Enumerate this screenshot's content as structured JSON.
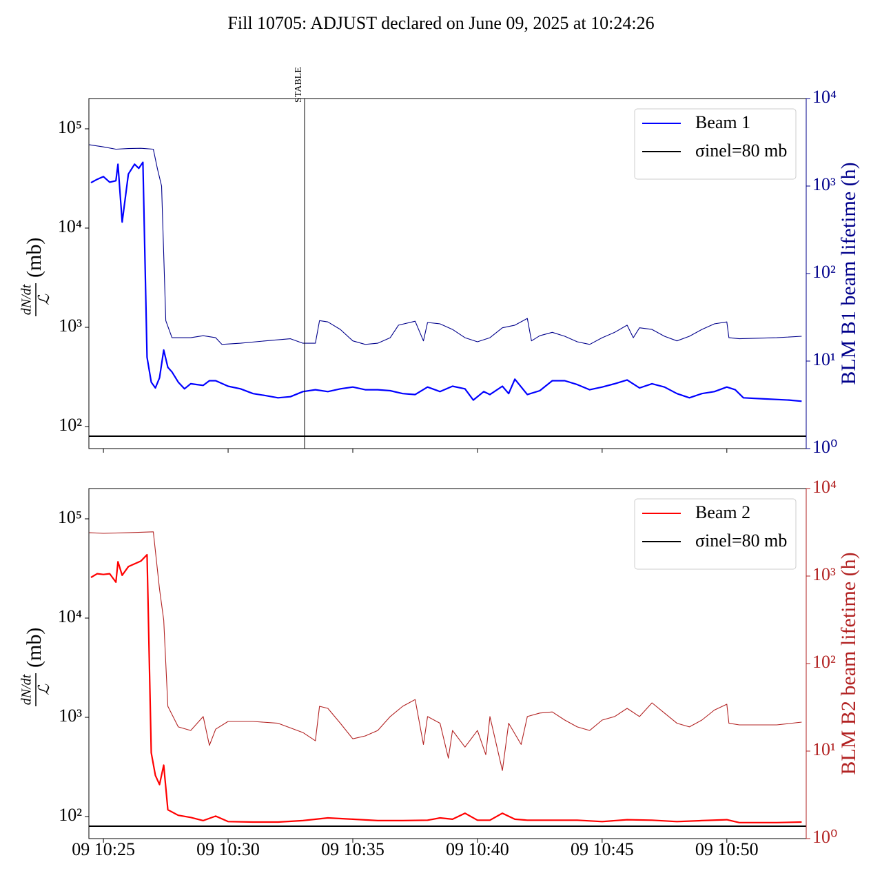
{
  "title": "Fill 10705: ADJUST declared on June 09, 2025 at 10:24:26",
  "chart_data": [
    {
      "type": "line",
      "yscale": "log",
      "y2scale": "log",
      "ylabel": {
        "numerator": "dN/dt",
        "denominator": "ℒ",
        "unit": "(mb)"
      },
      "y2label": "BLM B1 beam lifetime (h)",
      "y2color": "#00008b",
      "xlim": [
        "09 10:24:25",
        "09 10:53:11"
      ],
      "xticks": [
        "09 10:25",
        "09 10:30",
        "09 10:35",
        "09 10:40",
        "09 10:45",
        "09 10:50"
      ],
      "xticklabels": false,
      "ylim": [
        60,
        202000
      ],
      "yticks": [
        {
          "value": 100,
          "label": "10²"
        },
        {
          "value": 1000,
          "label": "10³"
        },
        {
          "value": 10000,
          "label": "10⁴"
        },
        {
          "value": 100000,
          "label": "10⁵"
        }
      ],
      "y2lim": [
        1,
        10000
      ],
      "y2ticks": [
        {
          "value": 1,
          "label": "10⁰"
        },
        {
          "value": 10,
          "label": "10¹"
        },
        {
          "value": 100,
          "label": "10²"
        },
        {
          "value": 1000,
          "label": "10³"
        },
        {
          "value": 10000,
          "label": "10⁴"
        }
      ],
      "annotation": {
        "text": "STABLE",
        "x": "09 10:33:04"
      },
      "series": [
        {
          "name": "Beam 1",
          "color": "#0000ff",
          "width": 2.2,
          "x": [
            "09 10:24:30",
            "09 10:24:45",
            "09 10:25:00",
            "09 10:25:15",
            "09 10:25:30",
            "09 10:25:35",
            "09 10:25:45",
            "09 10:26:00",
            "09 10:26:15",
            "09 10:26:25",
            "09 10:26:35",
            "09 10:26:45",
            "09 10:26:55",
            "09 10:27:05",
            "09 10:27:15",
            "09 10:27:25",
            "09 10:27:35",
            "09 10:27:45",
            "09 10:28:00",
            "09 10:28:15",
            "09 10:28:30",
            "09 10:28:45",
            "09 10:29:00",
            "09 10:29:15",
            "09 10:29:30",
            "09 10:30:00",
            "09 10:30:30",
            "09 10:31:00",
            "09 10:31:30",
            "09 10:32:00",
            "09 10:32:30",
            "09 10:33:00",
            "09 10:33:30",
            "09 10:34:00",
            "09 10:34:30",
            "09 10:35:00",
            "09 10:35:30",
            "09 10:36:00",
            "09 10:36:30",
            "09 10:37:00",
            "09 10:37:30",
            "09 10:38:00",
            "09 10:38:30",
            "09 10:39:00",
            "09 10:39:30",
            "09 10:39:50",
            "09 10:40:15",
            "09 10:40:30",
            "09 10:41:00",
            "09 10:41:15",
            "09 10:41:30",
            "09 10:42:00",
            "09 10:42:30",
            "09 10:43:00",
            "09 10:43:30",
            "09 10:44:00",
            "09 10:44:30",
            "09 10:45:00",
            "09 10:45:30",
            "09 10:46:00",
            "09 10:46:30",
            "09 10:47:00",
            "09 10:47:30",
            "09 10:48:00",
            "09 10:48:30",
            "09 10:49:00",
            "09 10:49:30",
            "09 10:50:00",
            "09 10:50:20",
            "09 10:50:40",
            "09 10:51:30",
            "09 10:52:30",
            "09 10:53:00"
          ],
          "values": [
            28700,
            31000,
            33000,
            29000,
            30000,
            44000,
            11500,
            35000,
            44000,
            40000,
            46000,
            500,
            280,
            245,
            310,
            590,
            395,
            355,
            280,
            240,
            270,
            265,
            260,
            290,
            290,
            255,
            240,
            215,
            205,
            195,
            200,
            225,
            235,
            225,
            240,
            250,
            235,
            235,
            230,
            215,
            210,
            250,
            225,
            255,
            240,
            185,
            225,
            210,
            255,
            215,
            300,
            210,
            230,
            290,
            290,
            265,
            235,
            250,
            270,
            295,
            245,
            270,
            250,
            215,
            195,
            215,
            225,
            250,
            235,
            195,
            190,
            185,
            180
          ]
        },
        {
          "color": "#00008b",
          "width": 1.1,
          "axis": "y2",
          "x": [
            "09 10:24:26",
            "09 10:25:00",
            "09 10:25:30",
            "09 10:26:00",
            "09 10:26:30",
            "09 10:27:00",
            "09 10:27:10",
            "09 10:27:20",
            "09 10:27:30",
            "09 10:27:45",
            "09 10:28:30",
            "09 10:29:00",
            "09 10:29:30",
            "09 10:29:45",
            "09 10:30:30",
            "09 10:31:30",
            "09 10:32:30",
            "09 10:33:00",
            "09 10:33:30",
            "09 10:33:40",
            "09 10:34:00",
            "09 10:34:30",
            "09 10:35:00",
            "09 10:35:30",
            "09 10:36:00",
            "09 10:36:30",
            "09 10:36:50",
            "09 10:37:30",
            "09 10:37:50",
            "09 10:38:00",
            "09 10:38:30",
            "09 10:39:00",
            "09 10:39:30",
            "09 10:40:00",
            "09 10:40:30",
            "09 10:41:00",
            "09 10:41:30",
            "09 10:42:00",
            "09 10:42:10",
            "09 10:42:30",
            "09 10:43:00",
            "09 10:43:30",
            "09 10:44:00",
            "09 10:44:30",
            "09 10:45:00",
            "09 10:45:30",
            "09 10:46:00",
            "09 10:46:15",
            "09 10:46:30",
            "09 10:47:00",
            "09 10:47:30",
            "09 10:48:00",
            "09 10:48:30",
            "09 10:49:00",
            "09 10:49:30",
            "09 10:50:00",
            "09 10:50:05",
            "09 10:50:30",
            "09 10:52:00",
            "09 10:53:00"
          ],
          "values": [
            2960,
            2800,
            2640,
            2680,
            2700,
            2640,
            1570,
            1000,
            29,
            18.5,
            18.5,
            19.5,
            18.5,
            15.5,
            16,
            17,
            18,
            16,
            16,
            29,
            28,
            23,
            17,
            15.5,
            16,
            18.5,
            25.7,
            28.5,
            17,
            27.6,
            26.6,
            23,
            18.5,
            16.6,
            18.5,
            24,
            25.7,
            30.7,
            17,
            19.5,
            21.3,
            19.2,
            16.6,
            15.5,
            18.5,
            21.3,
            25.7,
            18.5,
            24,
            23,
            19.2,
            17,
            19.2,
            23,
            26.6,
            28,
            18.5,
            18,
            18.5,
            19.2
          ]
        }
      ],
      "hlines": [
        {
          "name": "σinel=80 mb",
          "value": 80,
          "color": "#000000"
        }
      ]
    },
    {
      "type": "line",
      "yscale": "log",
      "y2scale": "log",
      "ylabel": {
        "numerator": "dN/dt",
        "denominator": "ℒ",
        "unit": "(mb)"
      },
      "y2label": "BLM B2 beam lifetime (h)",
      "y2color": "#b22222",
      "xlim": [
        "09 10:24:25",
        "09 10:53:11"
      ],
      "xticks": [
        "09 10:25",
        "09 10:30",
        "09 10:35",
        "09 10:40",
        "09 10:45",
        "09 10:50"
      ],
      "xticklabels": true,
      "ylim": [
        60,
        202000
      ],
      "yticks": [
        {
          "value": 100,
          "label": "10²"
        },
        {
          "value": 1000,
          "label": "10³"
        },
        {
          "value": 10000,
          "label": "10⁴"
        },
        {
          "value": 100000,
          "label": "10⁵"
        }
      ],
      "y2lim": [
        1,
        10000
      ],
      "y2ticks": [
        {
          "value": 1,
          "label": "10⁰"
        },
        {
          "value": 10,
          "label": "10¹"
        },
        {
          "value": 100,
          "label": "10²"
        },
        {
          "value": 1000,
          "label": "10³"
        },
        {
          "value": 10000,
          "label": "10⁴"
        }
      ],
      "series": [
        {
          "name": "Beam 2",
          "color": "#ff0000",
          "width": 2.2,
          "x": [
            "09 10:24:30",
            "09 10:24:45",
            "09 10:25:00",
            "09 10:25:15",
            "09 10:25:30",
            "09 10:25:35",
            "09 10:25:45",
            "09 10:26:00",
            "09 10:26:30",
            "09 10:26:45",
            "09 10:26:55",
            "09 10:27:05",
            "09 10:27:15",
            "09 10:27:25",
            "09 10:27:35",
            "09 10:28:00",
            "09 10:28:30",
            "09 10:29:00",
            "09 10:29:30",
            "09 10:30:00",
            "09 10:31:00",
            "09 10:32:00",
            "09 10:33:00",
            "09 10:34:00",
            "09 10:35:00",
            "09 10:36:00",
            "09 10:37:00",
            "09 10:38:00",
            "09 10:38:30",
            "09 10:39:00",
            "09 10:39:30",
            "09 10:40:00",
            "09 10:40:30",
            "09 10:41:00",
            "09 10:41:30",
            "09 10:42:00",
            "09 10:43:00",
            "09 10:44:00",
            "09 10:45:00",
            "09 10:46:00",
            "09 10:47:00",
            "09 10:48:00",
            "09 10:49:00",
            "09 10:50:00",
            "09 10:50:30",
            "09 10:52:00",
            "09 10:53:00"
          ],
          "values": [
            25700,
            28000,
            27500,
            28000,
            23000,
            37000,
            27000,
            33000,
            37500,
            43500,
            440,
            260,
            210,
            330,
            117,
            103,
            98,
            91,
            101,
            89,
            88,
            88,
            91,
            97,
            94,
            91,
            91,
            92,
            97,
            94,
            108,
            92,
            92,
            108,
            94,
            92,
            92,
            92,
            89,
            93,
            92,
            89,
            91,
            93,
            87,
            87,
            88
          ]
        },
        {
          "color": "#b22222",
          "width": 1.1,
          "axis": "y2",
          "x": [
            "09 10:24:26",
            "09 10:25:00",
            "09 10:26:00",
            "09 10:27:00",
            "09 10:27:15",
            "09 10:27:25",
            "09 10:27:35",
            "09 10:28:00",
            "09 10:28:30",
            "09 10:29:00",
            "09 10:29:15",
            "09 10:29:30",
            "09 10:30:00",
            "09 10:31:00",
            "09 10:32:00",
            "09 10:33:00",
            "09 10:33:30",
            "09 10:33:40",
            "09 10:34:00",
            "09 10:34:30",
            "09 10:35:00",
            "09 10:35:30",
            "09 10:36:00",
            "09 10:36:30",
            "09 10:37:00",
            "09 10:37:30",
            "09 10:37:50",
            "09 10:38:00",
            "09 10:38:30",
            "09 10:38:50",
            "09 10:39:00",
            "09 10:39:30",
            "09 10:40:00",
            "09 10:40:20",
            "09 10:40:30",
            "09 10:41:00",
            "09 10:41:15",
            "09 10:41:45",
            "09 10:42:00",
            "09 10:42:30",
            "09 10:43:00",
            "09 10:43:30",
            "09 10:44:00",
            "09 10:44:30",
            "09 10:45:00",
            "09 10:45:30",
            "09 10:46:00",
            "09 10:46:30",
            "09 10:47:00",
            "09 10:47:30",
            "09 10:48:00",
            "09 10:48:30",
            "09 10:49:00",
            "09 10:49:30",
            "09 10:50:00",
            "09 10:50:05",
            "09 10:50:30",
            "09 10:52:00",
            "09 10:53:00"
          ],
          "values": [
            3130,
            3080,
            3130,
            3200,
            710,
            314,
            32.5,
            18.9,
            17.2,
            24.8,
            11.6,
            17.8,
            21.8,
            21.8,
            20.8,
            16.3,
            13.1,
            32.5,
            30.8,
            20.8,
            13.8,
            14.9,
            17.2,
            24.8,
            32.5,
            38.8,
            11.9,
            24.8,
            20.8,
            8.3,
            17.2,
            11.1,
            17.2,
            9.1,
            24.8,
            6,
            20.8,
            11.9,
            24.8,
            27.2,
            28,
            22.6,
            18.9,
            17.2,
            22.6,
            24.8,
            30.8,
            24.8,
            35.6,
            27.2,
            20.8,
            18.9,
            22.6,
            29.4,
            34.3,
            20.8,
            19.9,
            19.9,
            21.4
          ]
        }
      ],
      "hlines": [
        {
          "name": "σinel=80 mb",
          "value": 80,
          "color": "#000000"
        }
      ]
    }
  ]
}
